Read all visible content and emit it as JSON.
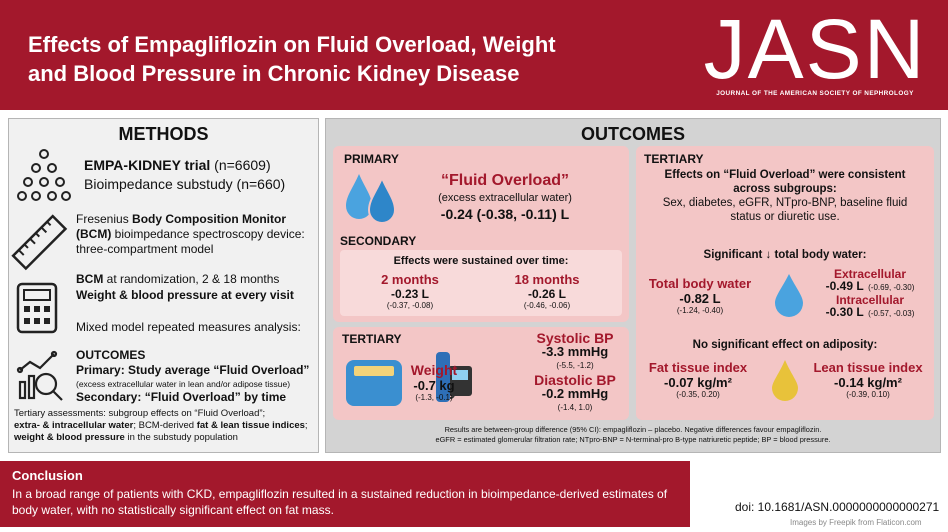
{
  "header": {
    "title_line1": "Effects of Empagliflozin on Fluid Overload, Weight",
    "title_line2": "and Blood Pressure in Chronic Kidney Disease",
    "logo": "JASN",
    "logo_subtitle": "JOURNAL OF THE AMERICAN SOCIETY OF NEPHROLOGY"
  },
  "methods": {
    "title": "METHODS",
    "trial": [
      "EMPA-KIDNEY trial",
      " (n=6609)"
    ],
    "substudy": "Bioimpedance substudy (n=660)",
    "device": [
      "Fresenius ",
      "Body Composition Monitor",
      "(BCM)",
      " bioimpedance spectroscopy device: three-compartment model"
    ],
    "timing": [
      "BCM",
      " at randomization, 2 & 18 months"
    ],
    "visits": "Weight & blood pressure at every visit",
    "analysis": "Mixed model repeated measures analysis:",
    "outcomes_title": "OUTCOMES",
    "primary": "Primary: Study average “Fluid Overload”",
    "primary_note": "(excess extracellular water in lean and/or adipose tissue)",
    "secondary": "Secondary: “Fluid Overload” by time",
    "tertiary": [
      "Tertiary assessments: subgroup effects on “Fluid Overload”;",
      "extra- & intracellular water",
      "; BCM-derived ",
      "fat & lean tissue indices",
      ";",
      "weight & blood pressure",
      " in the substudy population"
    ]
  },
  "outcomes": {
    "title": "OUTCOMES",
    "primary": {
      "label": "PRIMARY",
      "headline": "“Fluid Overload”",
      "note": "(excess extracellular water)",
      "result": "-0.24 (-0.38, -0.11) L"
    },
    "secondary": {
      "label": "SECONDARY",
      "intro": "Effects were sustained over time:",
      "items": [
        {
          "label": "2 months",
          "result": "-0.23 L",
          "ci": "(-0.37, -0.08)"
        },
        {
          "label": "18 months",
          "result": "-0.26 L",
          "ci": "(-0.46, -0.06)"
        }
      ]
    },
    "tertiary_left": {
      "label": "TERTIARY",
      "weight": {
        "label": "Weight",
        "result": "-0.7 kg",
        "ci": "(-1.3, -0.1)"
      },
      "systolic": {
        "label": "Systolic BP",
        "result": "-3.3 mmHg",
        "ci": "(-5.5, -1.2)"
      },
      "diastolic": {
        "label": "Diastolic BP",
        "result": "-0.2 mmHg",
        "ci": "(-1.4, 1.0)"
      }
    },
    "tertiary_right": {
      "label": "TERTIARY",
      "consistency": "Effects on “Fluid Overload” were consistent across subgroups:",
      "subgroups": "Sex, diabetes, eGFR, NTpro-BNP, baseline fluid status or diuretic use.",
      "water_intro": "Significant ↓ total body water:",
      "total": {
        "label": "Total body water",
        "result": "-0.82 L",
        "ci": "(-1.24, -0.40)"
      },
      "extracellular": {
        "label": "Extracellular",
        "result": "-0.49 L",
        "ci": "(-0.69, -0.30)"
      },
      "intracellular": {
        "label": "Intracellular",
        "result": "-0.30 L",
        "ci": "(-0.57, -0.03)"
      },
      "adiposity_intro": "No significant effect on adiposity:",
      "fat": {
        "label": "Fat tissue index",
        "result": "-0.07 kg/m²",
        "ci": "(-0.35, 0.20)"
      },
      "lean": {
        "label": "Lean tissue index",
        "result": "-0.14 kg/m²",
        "ci": "(-0.39, 0.10)"
      }
    },
    "footnote": [
      "Results are between-group difference (95% CI): empagliflozin – placebo. Negative differences favour empagliflozin.",
      "eGFR = estimated glomerular filtration rate; NTpro-BNP = N-terminal-pro B-type natriuretic peptide; BP = blood pressure."
    ]
  },
  "conclusion": {
    "title": "Conclusion",
    "text": "In a broad range of patients with CKD, empagliflozin resulted in a sustained reduction in bioimpedance-derived estimates of body water, with no statistically significant effect on fat mass."
  },
  "doi": "doi: 10.1681/ASN.0000000000000271",
  "credit": "Images by Freepik from Flaticon.com"
}
